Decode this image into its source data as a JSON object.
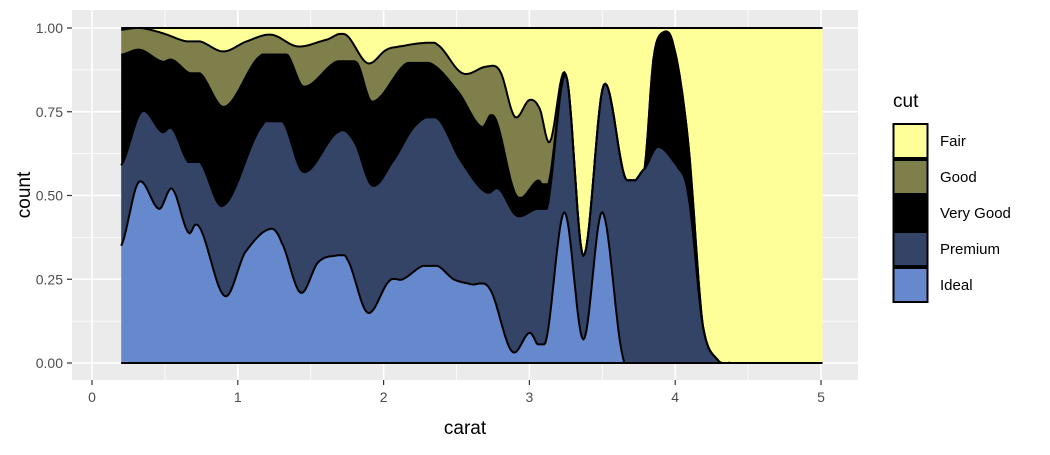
{
  "chart_data": {
    "type": "area",
    "subtype": "stacked density, position fill",
    "xlabel": "carat",
    "ylabel": "count",
    "xlim": [
      0,
      5.01
    ],
    "ylim": [
      0,
      1
    ],
    "x_ticks": [
      "0",
      "1",
      "2",
      "3",
      "4",
      "5"
    ],
    "x_tick_values": [
      0,
      1,
      2,
      3,
      4,
      5
    ],
    "y_ticks": [
      "0.00",
      "0.25",
      "0.50",
      "0.75",
      "1.00"
    ],
    "y_tick_values": [
      0,
      0.25,
      0.5,
      0.75,
      1
    ],
    "grid": true,
    "legend": {
      "title": "cut",
      "placement": "right",
      "entries": [
        "Fair",
        "Good",
        "Very Good",
        "Premium",
        "Ideal"
      ]
    },
    "colors": {
      "Fair": "#FFFF99",
      "Good": "#7F7F4C",
      "Very Good": "#000000",
      "Premium": "#344466",
      "Ideal": "#6688CC"
    },
    "series_note": "values are cumulative stacked proportions (upper boundary of each layer)",
    "series": [
      {
        "name": "Ideal",
        "x": [
          0.2,
          0.32,
          0.46,
          0.55,
          0.66,
          0.73,
          0.91,
          1.05,
          1.22,
          1.3,
          1.43,
          1.55,
          1.67,
          1.75,
          1.89,
          2.04,
          2.13,
          2.27,
          2.37,
          2.48,
          2.6,
          2.73,
          2.88,
          3.0,
          3.11,
          3.24,
          3.37,
          3.5,
          3.64,
          3.69,
          3.8,
          5.01
        ],
        "y": [
          0.35,
          0.54,
          0.46,
          0.52,
          0.39,
          0.41,
          0.2,
          0.33,
          0.4,
          0.36,
          0.21,
          0.3,
          0.32,
          0.31,
          0.15,
          0.245,
          0.25,
          0.29,
          0.29,
          0.25,
          0.235,
          0.22,
          0.035,
          0.09,
          0.06,
          0.45,
          0.07,
          0.45,
          0.02,
          0,
          0,
          0
        ]
      },
      {
        "name": "Premium",
        "x": [
          0.2,
          0.34,
          0.48,
          0.55,
          0.66,
          0.74,
          0.9,
          1.17,
          1.31,
          1.45,
          1.69,
          1.8,
          1.92,
          2.06,
          2.22,
          2.37,
          2.52,
          2.7,
          2.79,
          2.91,
          3.05,
          3.12,
          3.25,
          3.37,
          3.51,
          3.66,
          3.79,
          3.88,
          4.01,
          4.09,
          4.19,
          4.29,
          4.38,
          5.01
        ],
        "y": [
          0.59,
          0.75,
          0.69,
          0.7,
          0.6,
          0.6,
          0.47,
          0.71,
          0.72,
          0.57,
          0.69,
          0.66,
          0.53,
          0.6,
          0.71,
          0.73,
          0.61,
          0.51,
          0.52,
          0.44,
          0.46,
          0.46,
          0.86,
          0.32,
          0.83,
          0.55,
          0.58,
          0.645,
          0.59,
          0.5,
          0.11,
          0.01,
          0,
          0
        ]
      },
      {
        "name": "Very Good",
        "x": [
          0.2,
          0.33,
          0.48,
          0.55,
          0.67,
          0.74,
          0.91,
          1.15,
          1.34,
          1.45,
          1.68,
          1.82,
          1.92,
          2.16,
          2.34,
          2.52,
          2.67,
          2.76,
          2.91,
          3.06,
          3.13,
          3.25,
          3.37,
          3.51,
          3.66,
          3.79,
          3.85,
          3.91,
          3.99,
          4.09,
          4.19,
          4.29,
          4.38,
          5.01
        ],
        "y": [
          0.92,
          0.935,
          0.9,
          0.905,
          0.865,
          0.865,
          0.765,
          0.915,
          0.92,
          0.825,
          0.9,
          0.895,
          0.78,
          0.895,
          0.89,
          0.805,
          0.705,
          0.735,
          0.5,
          0.545,
          0.535,
          0.86,
          0.32,
          0.83,
          0.55,
          0.58,
          0.905,
          0.985,
          0.945,
          0.655,
          0.11,
          0.01,
          0,
          0
        ]
      },
      {
        "name": "Good",
        "x": [
          0.2,
          0.33,
          0.48,
          0.65,
          0.74,
          0.9,
          1.06,
          1.23,
          1.41,
          1.61,
          1.74,
          1.89,
          2.02,
          2.11,
          2.27,
          2.37,
          2.54,
          2.71,
          2.8,
          2.9,
          3.0,
          3.07,
          3.14,
          3.25,
          3.37,
          3.51,
          3.66,
          3.79,
          3.85,
          3.91,
          3.99,
          4.09,
          4.19,
          4.29,
          4.38,
          5.01
        ],
        "y": [
          0.995,
          1.0,
          0.985,
          0.96,
          0.96,
          0.93,
          0.96,
          0.98,
          0.945,
          0.965,
          0.98,
          0.895,
          0.935,
          0.945,
          0.955,
          0.95,
          0.865,
          0.885,
          0.87,
          0.735,
          0.785,
          0.76,
          0.66,
          0.86,
          0.32,
          0.83,
          0.55,
          0.58,
          0.905,
          0.985,
          0.945,
          0.655,
          0.11,
          0.01,
          0,
          0
        ]
      },
      {
        "name": "Fair",
        "x": [
          0.2,
          5.01
        ],
        "y": [
          1,
          1
        ]
      }
    ]
  }
}
